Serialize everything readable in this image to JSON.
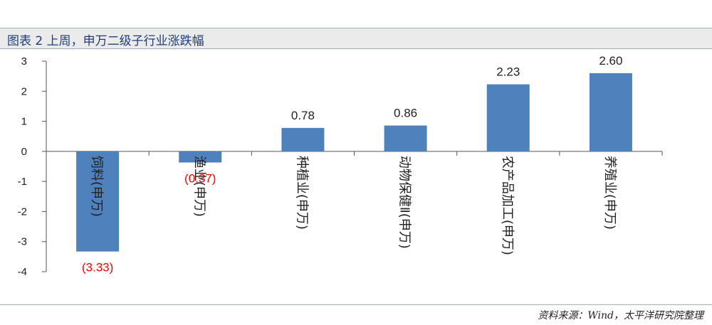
{
  "header": {
    "title": "图表 2 上周，申万二级子行业涨跌幅"
  },
  "footer": {
    "source": "资料来源：Wind，太平洋研究院整理"
  },
  "colors": {
    "bar": "#4f81bd",
    "positive_label": "#222222",
    "negative_label": "#ff0000"
  },
  "chart_data": {
    "type": "bar",
    "title": "",
    "xlabel": "",
    "ylabel": "",
    "ylim": [
      -4,
      3
    ],
    "yticks": [
      "3",
      "2",
      "1",
      "0",
      "-1",
      "-2",
      "-3",
      "-4"
    ],
    "categories": [
      "饲料(申万)",
      "渔业(申万)",
      "种植业(申万)",
      "动物保健Ⅱ(申万)",
      "农产品加工(申万)",
      "养殖业(申万)"
    ],
    "values": [
      -3.33,
      -0.37,
      0.78,
      0.86,
      2.23,
      2.6
    ],
    "value_labels": [
      "(3.33)",
      "(0.37)",
      "0.78",
      "0.86",
      "2.23",
      "2.60"
    ],
    "grid": false,
    "legend": "none"
  }
}
